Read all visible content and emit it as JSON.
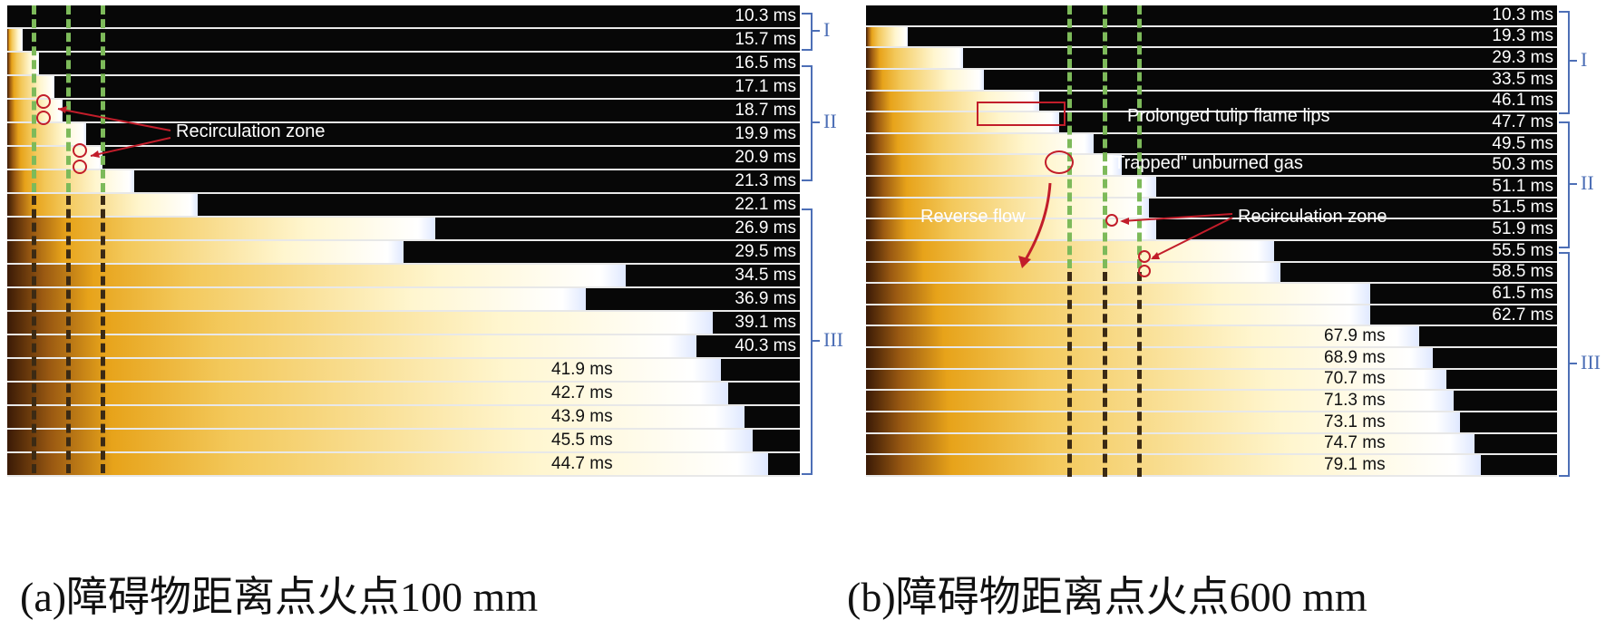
{
  "panel_a": {
    "frames": [
      "10.3 ms",
      "15.7 ms",
      "16.5 ms",
      "17.1 ms",
      "18.7 ms",
      "19.9 ms",
      "20.9 ms",
      "21.3 ms",
      "22.1 ms",
      "26.9 ms",
      "29.5 ms",
      "34.5 ms",
      "36.9 ms",
      "39.1 ms",
      "40.3 ms",
      "41.9 ms",
      "42.7 ms",
      "43.9 ms",
      "45.5 ms",
      "44.7 ms"
    ],
    "flame_fraction": [
      0.0,
      0.02,
      0.04,
      0.06,
      0.07,
      0.1,
      0.12,
      0.16,
      0.24,
      0.54,
      0.5,
      0.78,
      0.73,
      0.89,
      0.87,
      0.9,
      0.91,
      0.93,
      0.94,
      0.96
    ],
    "groups": [
      {
        "label": "I"
      },
      {
        "label": "II"
      },
      {
        "label": "III"
      }
    ],
    "annotation": "Recirculation zone",
    "caption": "(a)障碍物距离点火点100 mm"
  },
  "panel_b": {
    "frames": [
      "10.3 ms",
      "19.3 ms",
      "29.3 ms",
      "33.5 ms",
      "46.1 ms",
      "47.7 ms",
      "49.5 ms",
      "50.3 ms",
      "51.1 ms",
      "51.5 ms",
      "51.9 ms",
      "55.5 ms",
      "58.5 ms",
      "61.5 ms",
      "62.7 ms",
      "67.9 ms",
      "68.9 ms",
      "70.7 ms",
      "71.3 ms",
      "73.1 ms",
      "74.7 ms",
      "79.1 ms"
    ],
    "flame_fraction": [
      0.0,
      0.06,
      0.14,
      0.17,
      0.25,
      0.28,
      0.33,
      0.37,
      0.42,
      0.41,
      0.42,
      0.59,
      0.6,
      0.73,
      0.73,
      0.8,
      0.82,
      0.84,
      0.85,
      0.86,
      0.88,
      0.89
    ],
    "groups": [
      {
        "label": "I"
      },
      {
        "label": "II"
      },
      {
        "label": "III"
      }
    ],
    "annotations": {
      "tulip": "Prolonged  tulip flame lips",
      "trapped": "\"Trapped\" unburned gas",
      "reverse": "Reverse flow",
      "recirc": "Recirculation zone"
    },
    "caption": "(b)障碍物距离点火点600 mm"
  },
  "colors": {
    "bracket": "#4d6fb6",
    "obstacle": "#7dba5a",
    "marker": "#c21d2a",
    "flame_core": "#fff6cf",
    "flame_edge": "#e7a31a"
  }
}
